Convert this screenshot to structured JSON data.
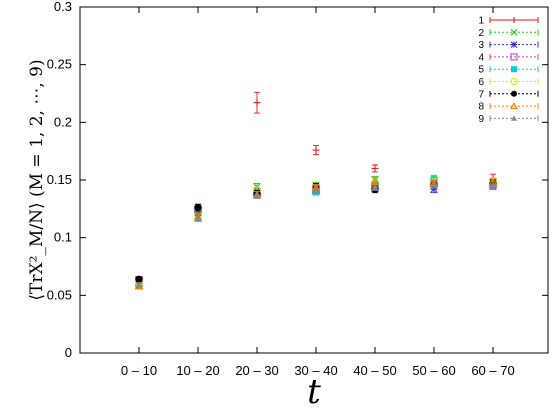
{
  "chart_data": {
    "type": "scatter",
    "xlabel": "t",
    "ylabel": "⟨TrX²_M/N⟩ (M = 1, 2, ⋯, 9)",
    "ylim": [
      0,
      0.3
    ],
    "yticks": [
      "0",
      "0.05",
      "0.1",
      "0.15",
      "0.2",
      "0.25",
      "0.3"
    ],
    "categories": [
      "0 – 10",
      "10 – 20",
      "20 – 30",
      "30 – 40",
      "40 – 50",
      "50 – 60",
      "60 – 70"
    ],
    "legend_position": "top-right",
    "series": [
      {
        "name": "1",
        "color": "#e41a1c",
        "marker": "plus",
        "values": [
          0.059,
          0.121,
          0.217,
          0.176,
          0.16,
          0.147,
          0.151
        ],
        "errors": [
          0.002,
          0.003,
          0.009,
          0.004,
          0.003,
          0.004,
          0.004
        ]
      },
      {
        "name": "2",
        "color": "#22cc22",
        "marker": "cross",
        "values": [
          0.06,
          0.119,
          0.144,
          0.145,
          0.15,
          0.149,
          0.148
        ],
        "errors": [
          0.002,
          0.003,
          0.003,
          0.003,
          0.003,
          0.004,
          0.003
        ]
      },
      {
        "name": "3",
        "color": "#3333cc",
        "marker": "star",
        "values": [
          0.061,
          0.122,
          0.14,
          0.143,
          0.143,
          0.142,
          0.145
        ],
        "errors": [
          0.002,
          0.003,
          0.003,
          0.003,
          0.003,
          0.003,
          0.003
        ]
      },
      {
        "name": "4",
        "color": "#cc44cc",
        "marker": "square",
        "values": [
          0.063,
          0.124,
          0.138,
          0.141,
          0.145,
          0.147,
          0.147
        ],
        "errors": [
          0.002,
          0.003,
          0.003,
          0.003,
          0.003,
          0.003,
          0.003
        ]
      },
      {
        "name": "5",
        "color": "#00d2d2",
        "marker": "square-filled",
        "values": [
          0.062,
          0.126,
          0.139,
          0.14,
          0.146,
          0.15,
          0.146
        ],
        "errors": [
          0.002,
          0.003,
          0.003,
          0.003,
          0.003,
          0.004,
          0.003
        ]
      },
      {
        "name": "6",
        "color": "#e6e600",
        "marker": "circle",
        "values": [
          0.061,
          0.12,
          0.141,
          0.144,
          0.147,
          0.148,
          0.149
        ],
        "errors": [
          0.002,
          0.003,
          0.003,
          0.003,
          0.003,
          0.003,
          0.003
        ]
      },
      {
        "name": "7",
        "color": "#000000",
        "marker": "circle-filled",
        "values": [
          0.064,
          0.126,
          0.138,
          0.144,
          0.142,
          0.146,
          0.147
        ],
        "errors": [
          0.002,
          0.003,
          0.003,
          0.003,
          0.003,
          0.003,
          0.003
        ]
      },
      {
        "name": "8",
        "color": "#ff7f00",
        "marker": "triangle",
        "values": [
          0.058,
          0.117,
          0.137,
          0.143,
          0.149,
          0.147,
          0.148
        ],
        "errors": [
          0.002,
          0.003,
          0.003,
          0.003,
          0.003,
          0.003,
          0.003
        ]
      },
      {
        "name": "9",
        "color": "#888888",
        "marker": "triangle-filled",
        "values": [
          0.059,
          0.118,
          0.137,
          0.142,
          0.144,
          0.146,
          0.146
        ],
        "errors": [
          0.002,
          0.003,
          0.003,
          0.003,
          0.003,
          0.003,
          0.003
        ]
      }
    ]
  }
}
